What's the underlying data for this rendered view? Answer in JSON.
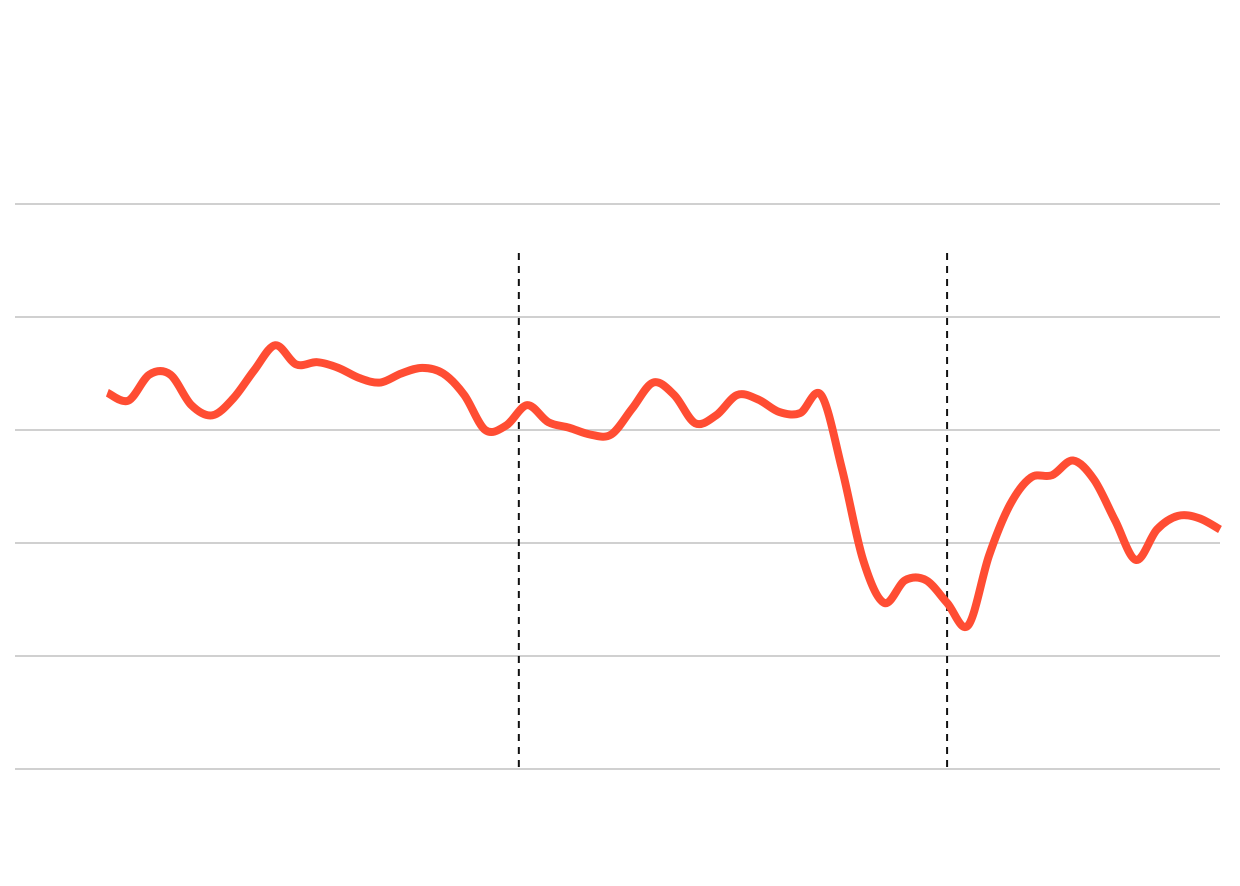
{
  "chart_data": {
    "type": "line",
    "x": [
      0,
      1,
      2,
      3,
      4,
      5,
      6,
      7,
      8,
      9,
      10,
      11,
      12,
      13,
      14,
      15,
      16,
      17,
      18,
      19,
      20,
      21,
      22,
      23,
      24,
      25,
      26,
      27,
      28,
      29,
      30,
      31,
      32,
      33,
      34,
      35,
      36,
      37,
      38,
      39,
      40,
      41,
      42,
      43,
      44,
      45,
      46,
      47,
      48,
      49,
      50,
      51,
      52,
      53
    ],
    "series": [
      {
        "color": "#ff4d33",
        "values": [
          3.33,
          3.26,
          3.49,
          3.49,
          3.22,
          3.13,
          3.28,
          3.53,
          3.75,
          3.58,
          3.6,
          3.55,
          3.46,
          3.42,
          3.5,
          3.55,
          3.5,
          3.31,
          3.0,
          3.04,
          3.22,
          3.07,
          3.02,
          2.96,
          2.96,
          3.19,
          3.42,
          3.31,
          3.06,
          3.13,
          3.31,
          3.27,
          3.16,
          3.15,
          3.31,
          2.65,
          1.85,
          1.47,
          1.67,
          1.67,
          1.47,
          1.27,
          1.89,
          2.34,
          2.58,
          2.6,
          2.73,
          2.56,
          2.2,
          1.85,
          2.12,
          2.24,
          2.22,
          2.12
        ]
      }
    ],
    "xlim": [
      -4.4,
      53
    ],
    "ylim": [
      0,
      5
    ],
    "yticks": [
      0,
      1,
      2,
      3,
      4,
      5
    ],
    "grid": true,
    "vlines": [
      19.6,
      40
    ]
  }
}
